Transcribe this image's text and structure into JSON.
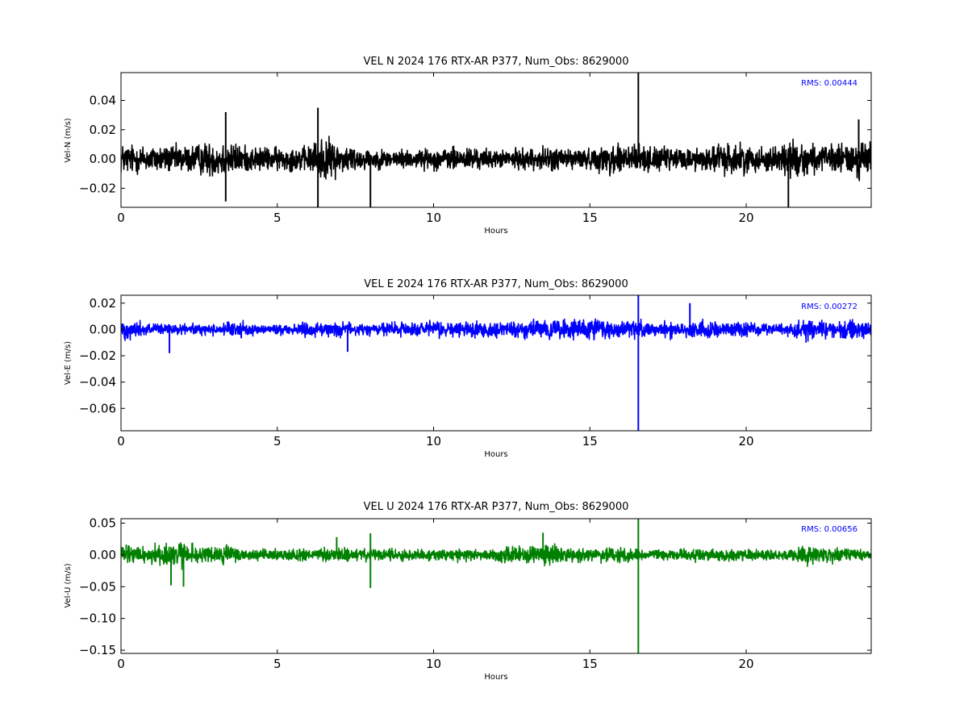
{
  "chart_data": [
    {
      "type": "line",
      "title": "VEL N 2024 176 RTX-AR  P377, Num_Obs: 8629000",
      "xlabel": "Hours",
      "ylabel": "Vel-N (m/s)",
      "xlim": [
        0,
        24
      ],
      "ylim": [
        -0.033,
        0.059
      ],
      "xticks": [
        0,
        5,
        10,
        15,
        20
      ],
      "yticks": [
        -0.02,
        0.0,
        0.02,
        0.04
      ],
      "ytick_labels": [
        "−0.02",
        "0.00",
        "0.02",
        "0.04"
      ],
      "xtick_labels": [
        "0",
        "5",
        "10",
        "15",
        "20"
      ],
      "color": "#000000",
      "annotation": "RMS:  0.00444",
      "annotation_color": "#0000ff",
      "noise_envelope": [
        {
          "x": 0,
          "amp": 0.015
        },
        {
          "x": 1.0,
          "amp": 0.013
        },
        {
          "x": 2.0,
          "amp": 0.013
        },
        {
          "x": 3.3,
          "amp": 0.018
        },
        {
          "x": 4.0,
          "amp": 0.012
        },
        {
          "x": 5.0,
          "amp": 0.011
        },
        {
          "x": 6.0,
          "amp": 0.012
        },
        {
          "x": 6.4,
          "amp": 0.022
        },
        {
          "x": 7.0,
          "amp": 0.015
        },
        {
          "x": 8.0,
          "amp": 0.009
        },
        {
          "x": 9.5,
          "amp": 0.009
        },
        {
          "x": 11.0,
          "amp": 0.012
        },
        {
          "x": 12.0,
          "amp": 0.008
        },
        {
          "x": 14.0,
          "amp": 0.012
        },
        {
          "x": 15.0,
          "amp": 0.009
        },
        {
          "x": 16.0,
          "amp": 0.018
        },
        {
          "x": 17.0,
          "amp": 0.011
        },
        {
          "x": 18.5,
          "amp": 0.011
        },
        {
          "x": 19.5,
          "amp": 0.016
        },
        {
          "x": 20.5,
          "amp": 0.011
        },
        {
          "x": 21.5,
          "amp": 0.018
        },
        {
          "x": 22.5,
          "amp": 0.012
        },
        {
          "x": 24.0,
          "amp": 0.02
        }
      ],
      "spikes": [
        {
          "x": 3.35,
          "y": 0.032
        },
        {
          "x": 3.35,
          "y": -0.029
        },
        {
          "x": 6.3,
          "y": 0.035
        },
        {
          "x": 6.3,
          "y": -0.033
        },
        {
          "x": 7.98,
          "y": -0.033
        },
        {
          "x": 16.55,
          "y": 0.059
        },
        {
          "x": 21.35,
          "y": -0.033
        },
        {
          "x": 23.6,
          "y": 0.027
        }
      ]
    },
    {
      "type": "line",
      "title": "VEL E 2024 176 RTX-AR  P377, Num_Obs: 8629000",
      "xlabel": "Hours",
      "ylabel": "Vel-E (m/s)",
      "xlim": [
        0,
        24
      ],
      "ylim": [
        -0.077,
        0.026
      ],
      "xticks": [
        0,
        5,
        10,
        15,
        20
      ],
      "yticks": [
        -0.06,
        -0.04,
        -0.02,
        0.0,
        0.02
      ],
      "ytick_labels": [
        "−0.06",
        "−0.04",
        "−0.02",
        "0.00",
        "0.02"
      ],
      "xtick_labels": [
        "0",
        "5",
        "10",
        "15",
        "20"
      ],
      "color": "#0000ff",
      "annotation": "RMS:  0.00272",
      "annotation_color": "#0000ff",
      "noise_envelope": [
        {
          "x": 0,
          "amp": 0.011
        },
        {
          "x": 1.0,
          "amp": 0.007
        },
        {
          "x": 2.0,
          "amp": 0.005
        },
        {
          "x": 3.0,
          "amp": 0.006
        },
        {
          "x": 3.8,
          "amp": 0.008
        },
        {
          "x": 4.5,
          "amp": 0.004
        },
        {
          "x": 6.0,
          "amp": 0.008
        },
        {
          "x": 8.0,
          "amp": 0.007
        },
        {
          "x": 10.0,
          "amp": 0.009
        },
        {
          "x": 12.0,
          "amp": 0.008
        },
        {
          "x": 13.5,
          "amp": 0.009
        },
        {
          "x": 14.5,
          "amp": 0.012
        },
        {
          "x": 15.5,
          "amp": 0.01
        },
        {
          "x": 17.0,
          "amp": 0.008
        },
        {
          "x": 18.5,
          "amp": 0.009
        },
        {
          "x": 20.0,
          "amp": 0.008
        },
        {
          "x": 21.0,
          "amp": 0.005
        },
        {
          "x": 22.0,
          "amp": 0.012
        },
        {
          "x": 23.0,
          "amp": 0.009
        },
        {
          "x": 24.0,
          "amp": 0.008
        }
      ],
      "spikes": [
        {
          "x": 1.55,
          "y": -0.018
        },
        {
          "x": 16.55,
          "y": -0.077
        },
        {
          "x": 16.55,
          "y": 0.026
        },
        {
          "x": 18.2,
          "y": 0.02
        },
        {
          "x": 7.25,
          "y": -0.017
        }
      ]
    },
    {
      "type": "line",
      "title": "VEL U 2024 176 RTX-AR  P377, Num_Obs: 8629000",
      "xlabel": "Hours",
      "ylabel": "Vel-U (m/s)",
      "xlim": [
        0,
        24
      ],
      "ylim": [
        -0.155,
        0.057
      ],
      "xticks": [
        0,
        5,
        10,
        15,
        20
      ],
      "yticks": [
        -0.15,
        -0.1,
        -0.05,
        0.0,
        0.05
      ],
      "ytick_labels": [
        "−0.15",
        "−0.10",
        "−0.05",
        "0.00",
        "0.05"
      ],
      "xtick_labels": [
        "0",
        "5",
        "10",
        "15",
        "20"
      ],
      "color": "#008000",
      "annotation": "RMS:  0.00656",
      "annotation_color": "#0000ff",
      "noise_envelope": [
        {
          "x": 0,
          "amp": 0.02
        },
        {
          "x": 1.0,
          "amp": 0.022
        },
        {
          "x": 2.0,
          "amp": 0.03
        },
        {
          "x": 2.6,
          "amp": 0.015
        },
        {
          "x": 3.3,
          "amp": 0.025
        },
        {
          "x": 4.0,
          "amp": 0.012
        },
        {
          "x": 5.5,
          "amp": 0.012
        },
        {
          "x": 7.0,
          "amp": 0.015
        },
        {
          "x": 8.5,
          "amp": 0.014
        },
        {
          "x": 10.0,
          "amp": 0.012
        },
        {
          "x": 12.0,
          "amp": 0.014
        },
        {
          "x": 13.8,
          "amp": 0.025
        },
        {
          "x": 14.5,
          "amp": 0.014
        },
        {
          "x": 16.0,
          "amp": 0.015
        },
        {
          "x": 17.5,
          "amp": 0.012
        },
        {
          "x": 19.5,
          "amp": 0.013
        },
        {
          "x": 21.0,
          "amp": 0.01
        },
        {
          "x": 22.0,
          "amp": 0.022
        },
        {
          "x": 23.0,
          "amp": 0.015
        },
        {
          "x": 24.0,
          "amp": 0.012
        }
      ],
      "spikes": [
        {
          "x": 1.6,
          "y": -0.048
        },
        {
          "x": 2.0,
          "y": -0.05
        },
        {
          "x": 6.9,
          "y": 0.028
        },
        {
          "x": 7.98,
          "y": -0.052
        },
        {
          "x": 7.98,
          "y": 0.034
        },
        {
          "x": 16.55,
          "y": -0.155
        },
        {
          "x": 16.55,
          "y": 0.057
        },
        {
          "x": 13.5,
          "y": 0.035
        }
      ]
    }
  ]
}
